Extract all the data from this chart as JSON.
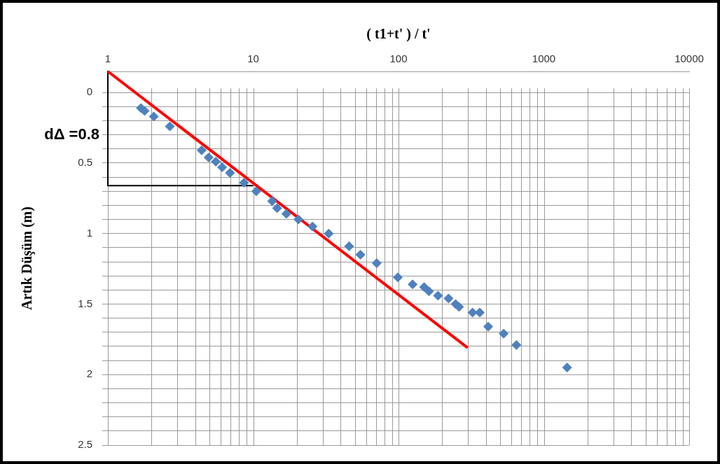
{
  "chart_data": {
    "type": "scatter",
    "xlabel": "( t1+t' ) / t'",
    "ylabel": "Artık Düşüm (m)",
    "annotations": [
      "dΔ =0.8"
    ],
    "log": "x",
    "grid": true,
    "legend": false,
    "xlim": [
      1,
      10000
    ],
    "xticks": [
      1,
      {
        "value": 2,
        "label": null
      },
      {
        "value": 3,
        "label": null
      },
      {
        "value": 4,
        "label": null
      },
      {
        "value": 5,
        "label": null
      },
      {
        "value": 6,
        "label": null
      },
      {
        "value": 7,
        "label": null
      },
      {
        "value": 8,
        "label": null
      },
      {
        "value": 9,
        "label": null
      },
      10,
      {
        "value": 20,
        "label": null
      },
      {
        "value": 30,
        "label": null
      },
      {
        "value": 40,
        "label": null
      },
      {
        "value": 50,
        "label": null
      },
      {
        "value": 60,
        "label": null
      },
      {
        "value": 70,
        "label": null
      },
      {
        "value": 80,
        "label": null
      },
      {
        "value": 90,
        "label": null
      },
      100,
      {
        "value": 200,
        "label": null
      },
      {
        "value": 300,
        "label": null
      },
      {
        "value": 400,
        "label": null
      },
      {
        "value": 500,
        "label": null
      },
      {
        "value": 600,
        "label": null
      },
      {
        "value": 700,
        "label": null
      },
      {
        "value": 800,
        "label": null
      },
      {
        "value": 900,
        "label": null
      },
      1000,
      {
        "value": 2000,
        "label": null
      },
      {
        "value": 3000,
        "label": null
      },
      {
        "value": 4000,
        "label": null
      },
      {
        "value": 5000,
        "label": null
      },
      {
        "value": 6000,
        "label": null
      },
      {
        "value": 7000,
        "label": null
      },
      {
        "value": 8000,
        "label": null
      },
      {
        "value": 9000,
        "label": null
      },
      10000
    ],
    "ylim": [
      2.5,
      -0.15
    ],
    "yticks": [
      0,
      {
        "value": 0.1,
        "label": null
      },
      {
        "value": 0.2,
        "label": null
      },
      {
        "value": 0.3,
        "label": null
      },
      {
        "value": 0.4,
        "label": null
      },
      0.5,
      {
        "value": 0.6,
        "label": null
      },
      {
        "value": 0.7,
        "label": null
      },
      {
        "value": 0.8,
        "label": null
      },
      {
        "value": 0.9,
        "label": null
      },
      1,
      {
        "value": 1.1,
        "label": null
      },
      {
        "value": 1.2,
        "label": null
      },
      {
        "value": 1.3,
        "label": null
      },
      {
        "value": 1.4,
        "label": null
      },
      1.5,
      {
        "value": 1.6,
        "label": null
      },
      {
        "value": 1.7,
        "label": null
      },
      {
        "value": 1.8,
        "label": null
      },
      {
        "value": 1.9,
        "label": null
      },
      2,
      {
        "value": 2.1,
        "label": null
      },
      {
        "value": 2.2,
        "label": null
      },
      {
        "value": 2.3,
        "label": null
      },
      {
        "value": 2.4,
        "label": null
      },
      2.5
    ],
    "series": [
      {
        "type": "scatter",
        "marker": "diamond",
        "color": "#4f81bd",
        "x": [
          1.69,
          1.79,
          2.07,
          2.67,
          4.42,
          4.94,
          5.53,
          6.11,
          6.92,
          8.65,
          10.5,
          13.5,
          14.6,
          16.9,
          20.5,
          25.6,
          33.1,
          45.7,
          54.7,
          70.8,
          98.9,
          125,
          150,
          162,
          187,
          221,
          247,
          261,
          323,
          362,
          414,
          529,
          647,
          1445
        ],
        "values": [
          0.11,
          0.13,
          0.17,
          0.24,
          0.41,
          0.46,
          0.49,
          0.53,
          0.57,
          0.64,
          0.7,
          0.77,
          0.82,
          0.86,
          0.9,
          0.95,
          1.0,
          1.09,
          1.15,
          1.21,
          1.31,
          1.36,
          1.38,
          1.41,
          1.44,
          1.46,
          1.5,
          1.52,
          1.56,
          1.56,
          1.66,
          1.71,
          1.79,
          1.95
        ]
      },
      {
        "type": "line",
        "marker": "none",
        "color": "#ff0000",
        "x": [
          1,
          299
        ],
        "values": [
          -0.15,
          1.81
        ]
      },
      {
        "type": "line",
        "marker": "none",
        "color": "#000000",
        "x": [
          1,
          1,
          10
        ],
        "values": [
          -0.15,
          0.66,
          0.66
        ]
      }
    ]
  }
}
